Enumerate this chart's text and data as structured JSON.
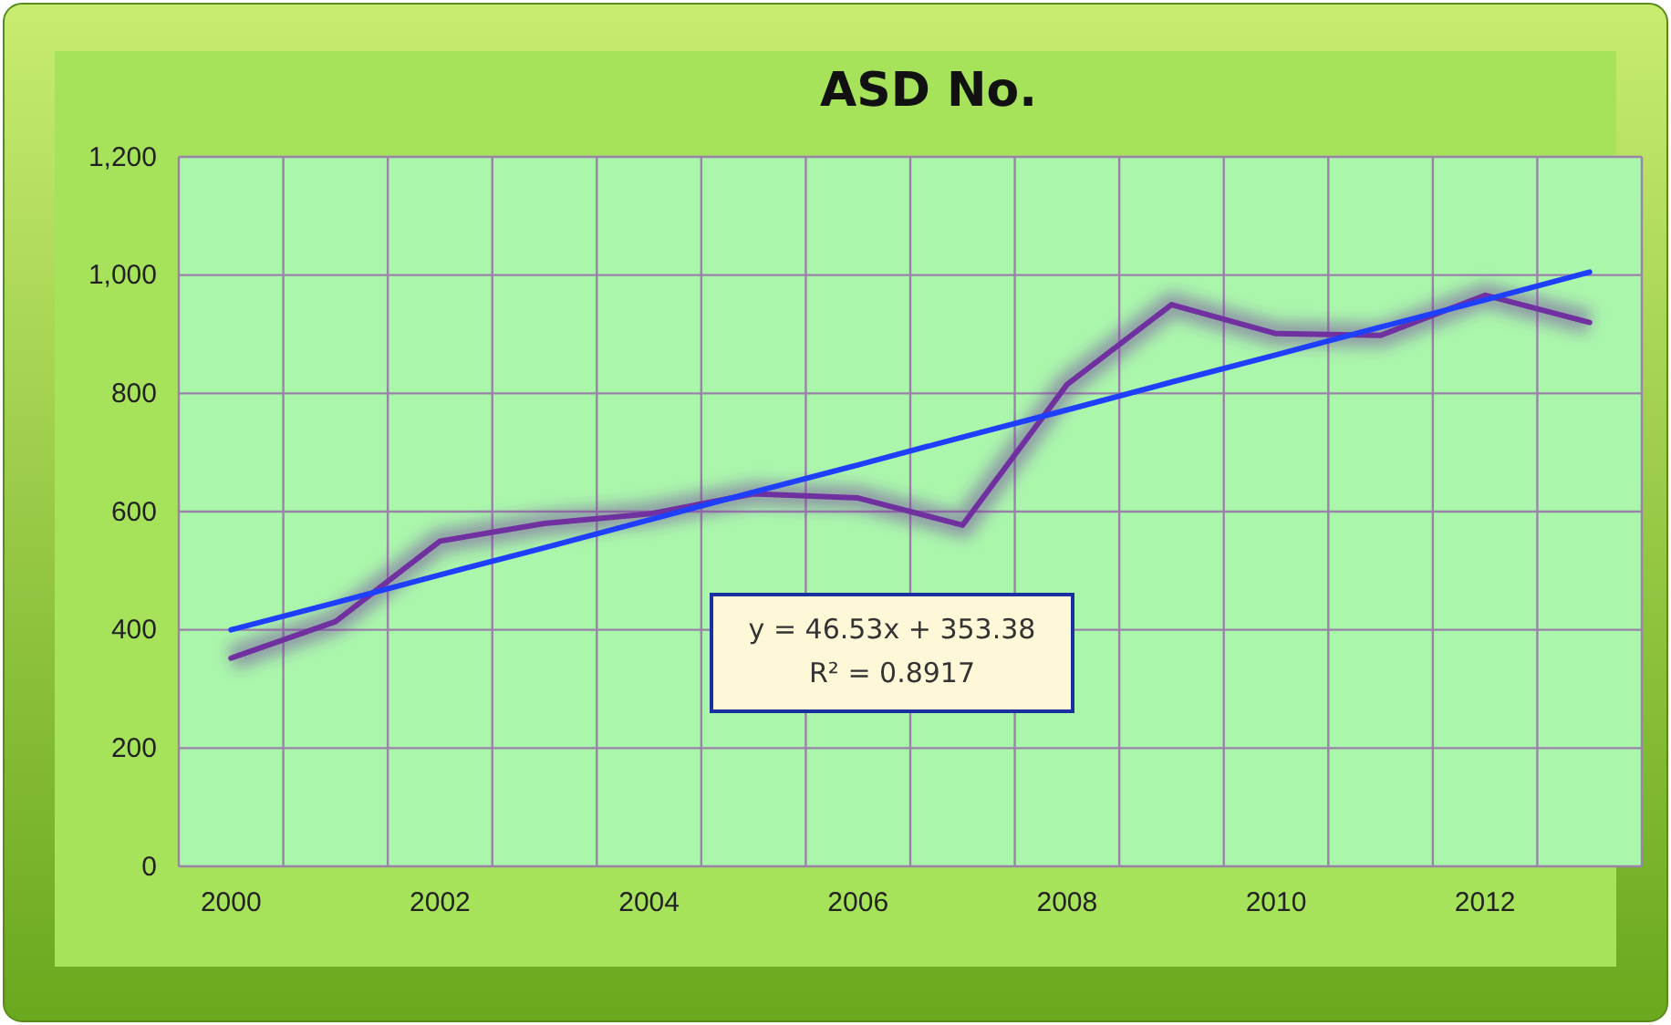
{
  "chart_data": {
    "type": "line",
    "title": "ASD No.",
    "categories": [
      "2000",
      null,
      "2002",
      null,
      "2004",
      null,
      "2006",
      null,
      "2008",
      null,
      "2010",
      null,
      "2012",
      null
    ],
    "series": [
      {
        "color": "#7030a0",
        "values": [
          352,
          414,
          550,
          580,
          596,
          630,
          623,
          577,
          815,
          950,
          901,
          898,
          966,
          920
        ]
      },
      {
        "type": "line",
        "color": "#1f3fff",
        "values": [
          400,
          446,
          493,
          539,
          586,
          633,
          679,
          726,
          772,
          819,
          865,
          912,
          958,
          1005
        ]
      }
    ],
    "ylim": [
      0,
      1200
    ],
    "yticks": [
      {
        "value": 0,
        "label": "0"
      },
      {
        "value": 200,
        "label": "200"
      },
      {
        "value": 400,
        "label": "400"
      },
      {
        "value": 600,
        "label": "600"
      },
      {
        "value": 800,
        "label": "800"
      },
      {
        "value": 1000,
        "label": "1,000"
      },
      {
        "value": 1200,
        "label": "1,200"
      }
    ],
    "grid": true,
    "marker": "none",
    "line_style": "solid",
    "annotations": [
      "y = 46.53x + 353.38",
      "R² = 0.8917"
    ]
  }
}
